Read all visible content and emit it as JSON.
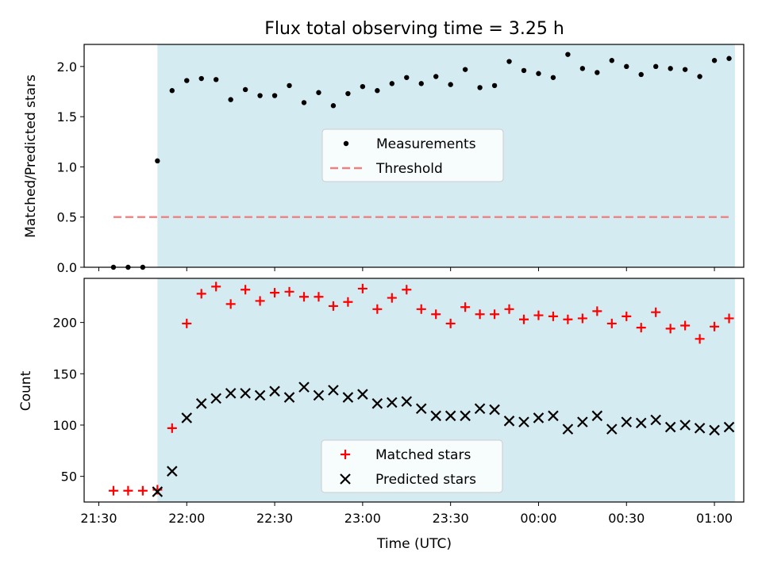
{
  "chart_data": [
    {
      "type": "scatter",
      "title": "Flux total observing time = 3.25 h",
      "xlabel": "",
      "ylabel": "Matched/Predicted stars",
      "ylim": [
        0,
        2.22
      ],
      "yticks": [
        "0.0",
        "0.5",
        "1.0",
        "1.5",
        "2.0"
      ],
      "ytick_values": [
        0,
        0.5,
        1.0,
        1.5,
        2.0
      ],
      "shaded_region": {
        "from": "21:50",
        "to": "01:07",
        "color": "#add8e6"
      },
      "legend_position": "center",
      "series": [
        {
          "name": "Measurements",
          "color": "#000000",
          "marker": "dot",
          "x": [
            "21:35",
            "21:40",
            "21:45",
            "21:50",
            "21:55",
            "22:00",
            "22:05",
            "22:10",
            "22:15",
            "22:20",
            "22:25",
            "22:30",
            "22:35",
            "22:40",
            "22:45",
            "22:50",
            "22:55",
            "23:00",
            "23:05",
            "23:10",
            "23:15",
            "23:20",
            "23:25",
            "23:30",
            "23:35",
            "23:40",
            "23:45",
            "23:50",
            "23:55",
            "00:00",
            "00:05",
            "00:10",
            "00:15",
            "00:20",
            "00:25",
            "00:30",
            "00:35",
            "00:40",
            "00:45",
            "00:50",
            "00:55",
            "01:00",
            "01:05"
          ],
          "y": [
            0.0,
            0.0,
            0.0,
            1.06,
            1.76,
            1.86,
            1.88,
            1.87,
            1.67,
            1.77,
            1.71,
            1.71,
            1.81,
            1.64,
            1.74,
            1.61,
            1.73,
            1.8,
            1.76,
            1.83,
            1.89,
            1.83,
            1.9,
            1.82,
            1.97,
            1.79,
            1.81,
            2.05,
            1.96,
            1.93,
            1.89,
            2.12,
            1.98,
            1.94,
            2.06,
            2.0,
            1.92,
            2.0,
            1.98,
            1.97,
            1.9,
            2.06,
            2.08
          ]
        },
        {
          "name": "Threshold",
          "color": "#f08080",
          "style": "dashed",
          "x": [
            "21:35",
            "01:05"
          ],
          "y": [
            0.5,
            0.5
          ]
        }
      ]
    },
    {
      "type": "scatter",
      "title": "",
      "xlabel": "Time (UTC)",
      "ylabel": "Count",
      "ylim": [
        25,
        243
      ],
      "yticks": [
        "50",
        "100",
        "150",
        "200"
      ],
      "ytick_values": [
        50,
        100,
        150,
        200
      ],
      "xticks": [
        "21:30",
        "22:00",
        "22:30",
        "23:00",
        "23:30",
        "00:00",
        "00:30",
        "01:00"
      ],
      "shaded_region": {
        "from": "21:50",
        "to": "01:07",
        "color": "#add8e6"
      },
      "legend_position": "bottom-center",
      "series": [
        {
          "name": "Matched stars",
          "color": "#ff0000",
          "marker": "plus",
          "x": [
            "21:35",
            "21:40",
            "21:45",
            "21:50",
            "21:55",
            "22:00",
            "22:05",
            "22:10",
            "22:15",
            "22:20",
            "22:25",
            "22:30",
            "22:35",
            "22:40",
            "22:45",
            "22:50",
            "22:55",
            "23:00",
            "23:05",
            "23:10",
            "23:15",
            "23:20",
            "23:25",
            "23:30",
            "23:35",
            "23:40",
            "23:45",
            "23:50",
            "23:55",
            "00:00",
            "00:05",
            "00:10",
            "00:15",
            "00:20",
            "00:25",
            "00:30",
            "00:35",
            "00:40",
            "00:45",
            "00:50",
            "00:55",
            "01:00",
            "01:05"
          ],
          "y": [
            36,
            36,
            36,
            37,
            97,
            199,
            228,
            235,
            218,
            232,
            221,
            229,
            230,
            225,
            225,
            216,
            220,
            233,
            213,
            224,
            232,
            213,
            208,
            199,
            215,
            208,
            208,
            213,
            203,
            207,
            206,
            203,
            204,
            211,
            199,
            206,
            195,
            210,
            194,
            197,
            184,
            196,
            204
          ]
        },
        {
          "name": "Predicted stars",
          "color": "#000000",
          "marker": "x",
          "x": [
            "21:50",
            "21:55",
            "22:00",
            "22:05",
            "22:10",
            "22:15",
            "22:20",
            "22:25",
            "22:30",
            "22:35",
            "22:40",
            "22:45",
            "22:50",
            "22:55",
            "23:00",
            "23:05",
            "23:10",
            "23:15",
            "23:20",
            "23:25",
            "23:30",
            "23:35",
            "23:40",
            "23:45",
            "23:50",
            "23:55",
            "00:00",
            "00:05",
            "00:10",
            "00:15",
            "00:20",
            "00:25",
            "00:30",
            "00:35",
            "00:40",
            "00:45",
            "00:50",
            "00:55",
            "01:00",
            "01:05"
          ],
          "y": [
            35,
            55,
            107,
            121,
            126,
            131,
            131,
            129,
            133,
            127,
            137,
            129,
            134,
            127,
            130,
            121,
            122,
            123,
            116,
            109,
            109,
            109,
            116,
            115,
            104,
            103,
            107,
            109,
            96,
            103,
            109,
            96,
            103,
            102,
            105,
            98,
            100,
            97,
            95,
            98
          ]
        }
      ]
    }
  ]
}
